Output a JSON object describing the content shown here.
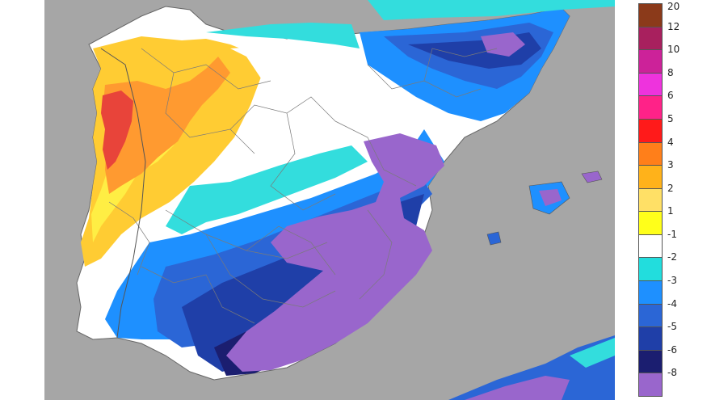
{
  "map": {
    "region": "Iberian Peninsula",
    "background_color": "#a6a6a6"
  },
  "legend": {
    "ticks": [
      "20",
      "12",
      "10",
      "8",
      "6",
      "5",
      "4",
      "3",
      "2",
      "1",
      "-1",
      "-2",
      "-3",
      "-4",
      "-5",
      "-6",
      "-8"
    ],
    "colors": [
      "#8b3a1a",
      "#a8205e",
      "#cc2299",
      "#ee33dd",
      "#ff2288",
      "#ff1a1a",
      "#ff7f1a",
      "#ffb21a",
      "#ffe066",
      "#ffff1a",
      "#ffffff",
      "#22dddd",
      "#1e90ff",
      "#2b66d6",
      "#1f3fa8",
      "#1b1e70",
      "#9966cc"
    ]
  },
  "palette": {
    "very_warm": "#e8443a",
    "warm": "#ff9a30",
    "mild": "#ffcc33",
    "lukewarm": "#ffee44",
    "near_zero": "#ffffff",
    "cold_light": "#33dddd",
    "cold": "#1e90ff",
    "colder": "#2b66d6",
    "very_cold": "#1f3fa8",
    "extreme": "#1b1e70",
    "coldest": "#9966cc"
  }
}
